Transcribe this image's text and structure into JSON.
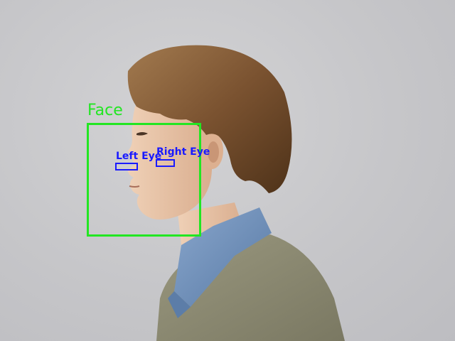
{
  "detections": {
    "face": {
      "label": "Face",
      "color": "#22e622"
    },
    "left_eye": {
      "label": "Left Eye",
      "color": "#1a1aff"
    },
    "right_eye": {
      "label": "Right Eye",
      "color": "#1a1aff"
    }
  },
  "palette": {
    "background": "#c9c9cb",
    "hair": "#7a5230",
    "skin": "#e6c2a4",
    "collar": "#6f8fb8",
    "sweater": "#8e8c74"
  }
}
